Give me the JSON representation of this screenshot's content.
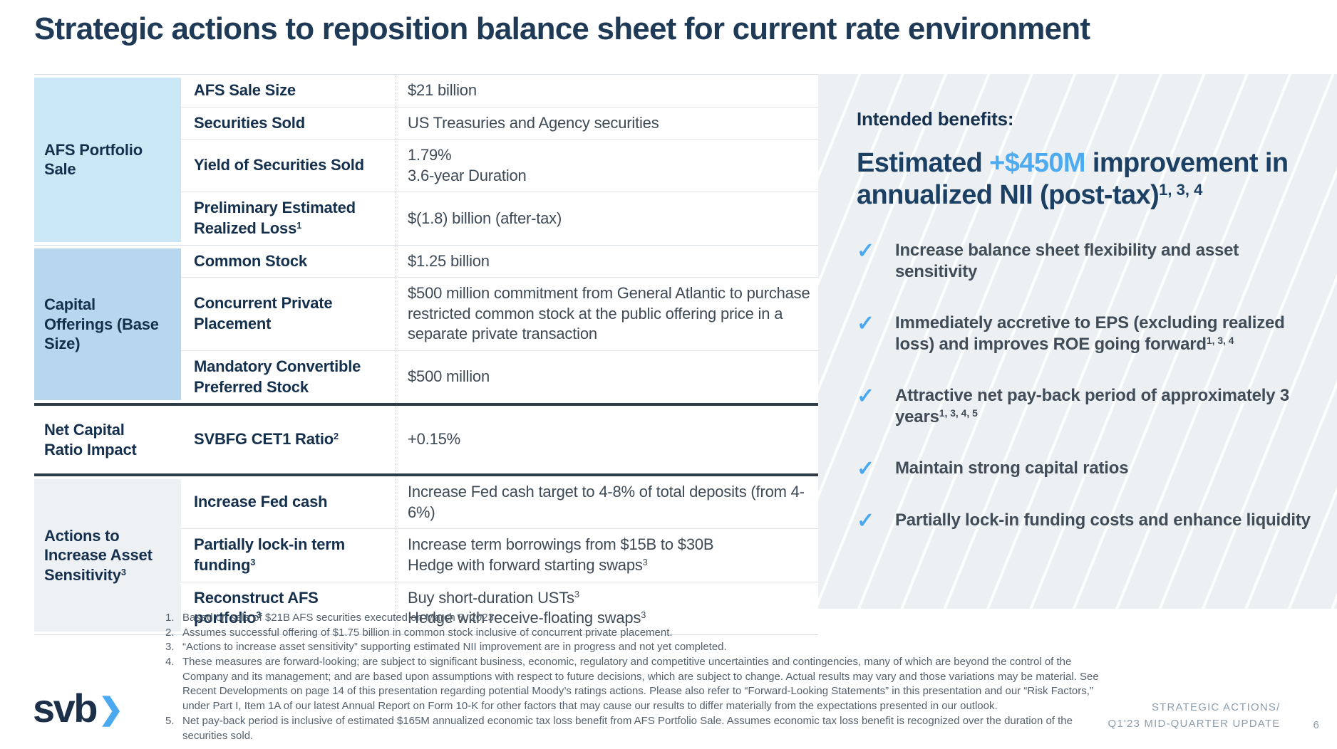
{
  "slide": {
    "title": "Strategic actions to reposition balance sheet for current rate environment",
    "page_number": "6",
    "footer_line1": "STRATEGIC ACTIONS/",
    "footer_line2": "Q1'23 MID-QUARTER UPDATE",
    "logo_text": "svb",
    "logo_chevron": "❯"
  },
  "colors": {
    "navy_text": "#1e3a56",
    "accent_blue": "#4fabf0",
    "category_light_blue": "#cbe8f7",
    "category_medium_blue": "#b7d7ef",
    "category_gray": "#eef1f3",
    "panel_gray": "#edf0f3",
    "heavy_border": "#2e3c47",
    "footnote_gray": "#54616c",
    "footer_gray": "#8e9dab"
  },
  "table": {
    "sections": [
      {
        "category": "AFS Portfolio Sale",
        "rows": [
          {
            "label": "AFS Sale Size",
            "value": "$21 billion"
          },
          {
            "label": "Securities Sold",
            "value": "US Treasuries and Agency securities"
          },
          {
            "label": "Yield of Securities Sold",
            "value": "1.79%\n3.6-year Duration"
          },
          {
            "label": "Preliminary Estimated Realized Loss^(1)",
            "value": "$(1.8) billion (after-tax)"
          }
        ]
      },
      {
        "category": "Capital Offerings (Base Size)",
        "rows": [
          {
            "label": "Common Stock",
            "value": "$1.25 billion"
          },
          {
            "label": "Concurrent Private Placement",
            "value": "$500 million commitment from General Atlantic to purchase restricted common stock at the public offering price in a separate private transaction"
          },
          {
            "label": "Mandatory Convertible Preferred Stock",
            "value": "$500 million"
          }
        ]
      },
      {
        "category": "Net Capital Ratio Impact",
        "rows": [
          {
            "label": "SVBFG CET1 Ratio^(2)",
            "value": "+0.15%"
          }
        ]
      },
      {
        "category": "Actions to Increase Asset Sensitivity^(3)",
        "rows": [
          {
            "label": "Increase Fed cash",
            "value": "Increase Fed cash target to 4-8% of total deposits (from 4-6%)"
          },
          {
            "label": "Partially lock-in term funding^(3)",
            "value": "Increase term borrowings from $15B to $30B\nHedge with forward starting swaps^(3)"
          },
          {
            "label": "Reconstruct AFS portfolio^(3)",
            "value": "Buy short-duration USTs^(3)\nHedge with receive-floating swaps^(3)"
          }
        ]
      }
    ]
  },
  "benefits": {
    "heading": "Intended benefits:",
    "headline_part1": "Estimated ",
    "headline_highlight": "+$450M",
    "headline_part2": " improvement in annualized NII (post-tax)^(1, 3, 4)",
    "check_glyph": "✓",
    "items": [
      {
        "text": "Increase balance sheet flexibility and asset sensitivity"
      },
      {
        "text": "Immediately accretive to EPS (excluding realized loss) and improves ROE going forward^(1, 3, 4)"
      },
      {
        "text": "Attractive net pay-back period of approximately 3 years^(1, 3, 4, 5)"
      },
      {
        "text": "Maintain strong capital ratios"
      },
      {
        "text": "Partially lock-in funding costs and enhance liquidity"
      }
    ]
  },
  "footnotes": [
    {
      "num": "1.",
      "text": "Based on sale of $21B AFS securities executed on March 8, 2023."
    },
    {
      "num": "2.",
      "text": "Assumes successful offering of $1.75 billion in common stock inclusive of concurrent private placement."
    },
    {
      "num": "3.",
      "text": "“Actions to increase asset sensitivity” supporting estimated NII improvement are in progress and not yet completed."
    },
    {
      "num": "4.",
      "text": "These measures are forward-looking; are subject to significant business, economic, regulatory and competitive uncertainties and contingencies, many of which are beyond the control of the Company and its management; and are based upon assumptions with respect to future decisions, which are subject to change. Actual results may vary and those variations may be material. See Recent Developments on page 14 of this presentation regarding potential Moody’s ratings actions.  Please also refer to “Forward-Looking Statements” in this presentation and our “Risk Factors,” under Part I, Item 1A of our latest Annual Report on Form 10-K for other factors that may cause our results to differ materially from the expectations presented in our outlook."
    },
    {
      "num": "5.",
      "text": "Net pay-back period is inclusive of estimated $165M annualized economic tax loss benefit from AFS Portfolio Sale.  Assumes economic tax loss benefit is recognized over the duration of the securities sold."
    }
  ]
}
